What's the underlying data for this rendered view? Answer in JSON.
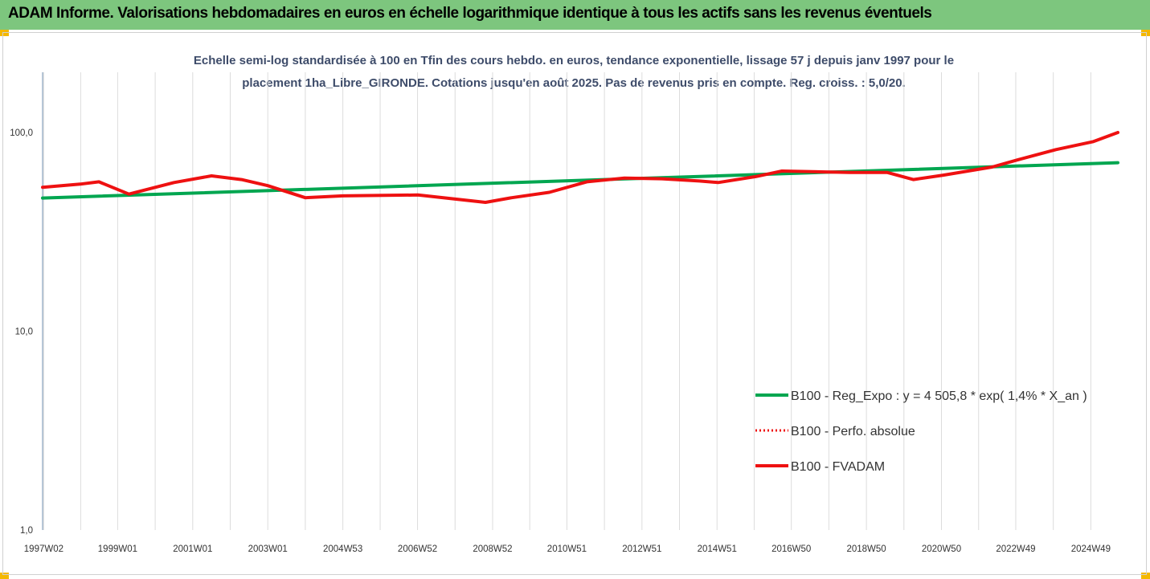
{
  "header": {
    "title": "ADAM Informe. Valorisations hebdomadaires en euros en échelle logarithmique identique à tous les actifs sans les revenus éventuels"
  },
  "colors": {
    "header_bg": "#7dc67e",
    "corner_marks": "#f5b800",
    "trend": "#00a650",
    "fvadam": "#ee1111",
    "perfo": "#ee1111"
  },
  "chart_data": {
    "type": "line",
    "title_lines": [
      "Echelle semi-log standardisée à 100 en Tfin des cours hebdo. en euros, tendance exponentielle, lissage 57 j depuis janv 1997 pour le",
      "placement 1ha_Libre_GIRONDE. Cotations jusqu'en août 2025. Pas de revenus pris en compte. Reg. croiss. : 5,0/20."
    ],
    "y_scale": "log",
    "ylim": [
      1,
      200
    ],
    "xlim": [
      1997.0,
      2025.65
    ],
    "grid": "vertical",
    "legend_position": "right",
    "y_ticks": [
      {
        "value": 1,
        "label": "1,0"
      },
      {
        "value": 10,
        "label": "10,0"
      },
      {
        "value": 100,
        "label": "100,0"
      }
    ],
    "x_ticks": [
      {
        "x": 1997.03,
        "label": "1997W02"
      },
      {
        "x": 1999.0,
        "label": "1999W01"
      },
      {
        "x": 2001.0,
        "label": "2001W01"
      },
      {
        "x": 2003.0,
        "label": "2003W01"
      },
      {
        "x": 2005.0,
        "label": "2004W53"
      },
      {
        "x": 2006.99,
        "label": "2006W52"
      },
      {
        "x": 2008.99,
        "label": "2008W52"
      },
      {
        "x": 2010.97,
        "label": "2010W51"
      },
      {
        "x": 2012.97,
        "label": "2012W51"
      },
      {
        "x": 2014.97,
        "label": "2014W51"
      },
      {
        "x": 2016.95,
        "label": "2016W50"
      },
      {
        "x": 2018.95,
        "label": "2018W50"
      },
      {
        "x": 2020.95,
        "label": "2020W50"
      },
      {
        "x": 2022.93,
        "label": "2022W49"
      },
      {
        "x": 2024.93,
        "label": "2024W49"
      }
    ],
    "series": [
      {
        "name": "B100 - Reg_Expo : y = 4 505,8 * exp( 1,4% *  X_an )",
        "style": "solid",
        "color": "#00a650",
        "x": [
          1997.0,
          2025.65
        ],
        "y": [
          46.8,
          70.5
        ]
      },
      {
        "name": "B100 - Perfo. absolue",
        "style": "dotted",
        "color": "#ee1111",
        "x": [],
        "y": []
      },
      {
        "name": "B100 - FVADAM",
        "style": "solid",
        "color": "#ee1111",
        "x": [
          1997.0,
          1998.0,
          1998.5,
          1999.3,
          2000.5,
          2001.5,
          2002.3,
          2003.0,
          2004.0,
          2005.0,
          2007.0,
          2008.8,
          2009.5,
          2010.5,
          2011.5,
          2012.5,
          2013.5,
          2014.5,
          2015.0,
          2016.0,
          2016.7,
          2017.5,
          2018.5,
          2019.5,
          2020.2,
          2021.0,
          2022.3,
          2023.0,
          2024.0,
          2025.0,
          2025.65
        ],
        "y": [
          53,
          55,
          56.5,
          49,
          56,
          60.5,
          58,
          54,
          47,
          48,
          48.5,
          44.5,
          47,
          50,
          56.5,
          59,
          58.5,
          57,
          56,
          60,
          64,
          63.5,
          63,
          63,
          58,
          61,
          67,
          73,
          82,
          90,
          100
        ]
      }
    ]
  }
}
